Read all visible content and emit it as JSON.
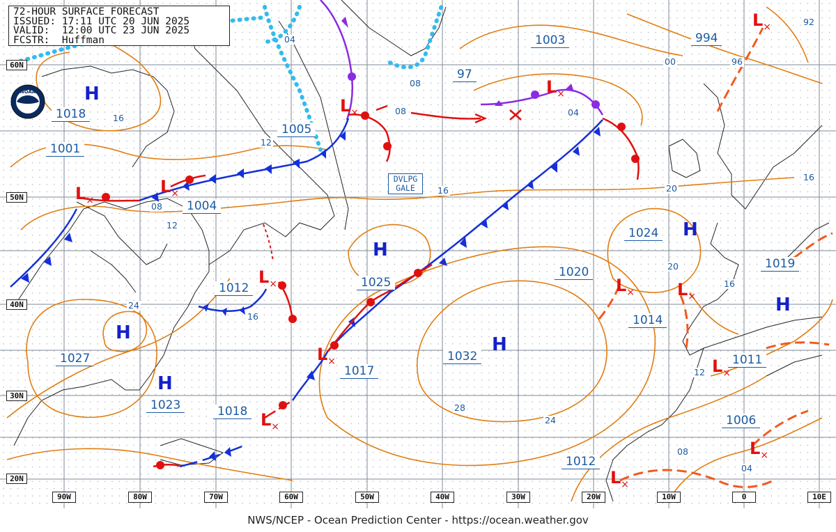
{
  "header": {
    "title": "72-HOUR SURFACE FORECAST",
    "issued": "ISSUED: 17:11 UTC 20 JUN 2025",
    "valid": "VALID:  12:00 UTC 23 JUN 2025",
    "forecaster": "FCSTR:  Huffman"
  },
  "footer": "NWS/NCEP - Ocean Prediction Center - https://ocean.weather.gov",
  "logo": "NOAA",
  "latitudes": [
    "60N",
    "50N",
    "40N",
    "30N",
    "20N"
  ],
  "longitudes": [
    "90W",
    "80W",
    "70W",
    "60W",
    "50W",
    "40W",
    "30W",
    "20W",
    "10W",
    "0",
    "10E"
  ],
  "gale": [
    "DVLPG",
    "GALE"
  ],
  "highs": {
    "symbol": "H",
    "pressures": [
      "1018",
      "1027",
      "1023",
      "1025",
      "1032",
      "1024",
      "1019"
    ]
  },
  "lows": {
    "symbol": "L",
    "pressures": [
      "1001",
      "1004",
      "1005",
      "1012",
      "1003",
      "994",
      "97",
      "1017",
      "1018",
      "1020",
      "1014",
      "1011",
      "1006",
      "1012"
    ]
  },
  "isobar_labels": [
    "04",
    "08",
    "12",
    "16",
    "16",
    "08",
    "12",
    "24",
    "16",
    "08",
    "04",
    "00",
    "96",
    "92",
    "16",
    "20",
    "20",
    "16",
    "28",
    "24",
    "12",
    "08",
    "04"
  ],
  "colors": {
    "isobar": "#e07d10",
    "cold_front": "#1530d8",
    "warm_front": "#e01010",
    "occluded_front": "#8a2be2",
    "ice_edge": "#33bbee",
    "pressure_text": "#1c5aa0",
    "high": "#1520c8",
    "low": "#e01010"
  }
}
